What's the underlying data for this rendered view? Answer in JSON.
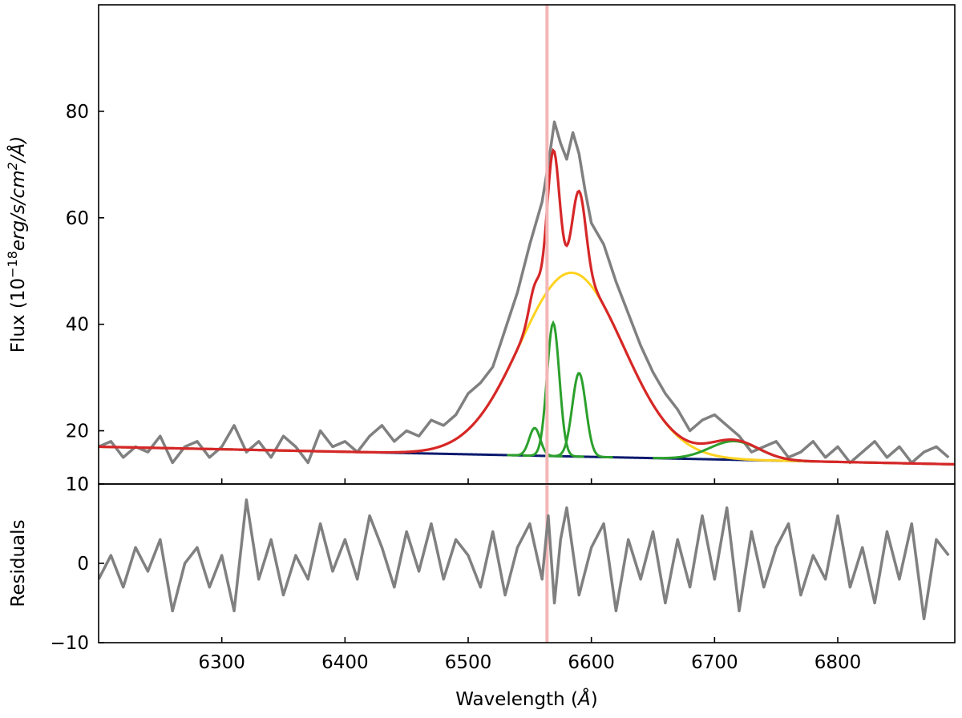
{
  "chart_data": [
    {
      "type": "line",
      "panel": "main",
      "ylabel_text": "Flux (",
      "ylabel_math": "10",
      "ylabel_exp": "−18",
      "ylabel_unit_a": "erg/s/cm",
      "ylabel_unit_sq": "2",
      "ylabel_unit_b": "/Å)",
      "xlim": [
        6200,
        6895
      ],
      "ylim": [
        10,
        100
      ],
      "yticks": [
        {
          "v": 10,
          "label": "10"
        },
        {
          "v": 20,
          "label": "20"
        },
        {
          "v": 40,
          "label": "40"
        },
        {
          "v": 60,
          "label": "60"
        },
        {
          "v": 80,
          "label": "80"
        }
      ],
      "vline": {
        "x": 6564,
        "color": "#f4b6b6"
      },
      "series": [
        {
          "role": "observed-spectrum",
          "color": "#808080",
          "x": [
            6200,
            6210,
            6220,
            6230,
            6240,
            6250,
            6260,
            6270,
            6280,
            6290,
            6300,
            6310,
            6320,
            6330,
            6340,
            6350,
            6360,
            6370,
            6380,
            6390,
            6400,
            6410,
            6420,
            6430,
            6440,
            6450,
            6460,
            6470,
            6480,
            6490,
            6500,
            6510,
            6520,
            6530,
            6540,
            6550,
            6560,
            6565,
            6570,
            6575,
            6580,
            6585,
            6590,
            6595,
            6600,
            6610,
            6620,
            6630,
            6640,
            6650,
            6660,
            6670,
            6680,
            6690,
            6700,
            6710,
            6720,
            6730,
            6740,
            6750,
            6760,
            6770,
            6780,
            6790,
            6800,
            6810,
            6820,
            6830,
            6840,
            6850,
            6860,
            6870,
            6880,
            6890
          ],
          "y": [
            17,
            18,
            15,
            17,
            16,
            19,
            14,
            17,
            18,
            15,
            17,
            21,
            16,
            18,
            15,
            19,
            17,
            14,
            20,
            17,
            18,
            16,
            19,
            21,
            18,
            20,
            19,
            22,
            21,
            23,
            27,
            29,
            32,
            39,
            46,
            55,
            63,
            70,
            78,
            74,
            71,
            76,
            72,
            65,
            59,
            55,
            48,
            42,
            36,
            31,
            27,
            24,
            20,
            22,
            23,
            21,
            19,
            16,
            17,
            18,
            15,
            16,
            18,
            15,
            17,
            14,
            16,
            18,
            15,
            17,
            14,
            16,
            17,
            15
          ]
        },
        {
          "role": "continuum",
          "color": "#0a1a6e",
          "x": [
            6200,
            6895
          ],
          "y": [
            17.0,
            13.7
          ]
        },
        {
          "role": "broad-component",
          "color": "#ffd21f",
          "x": [
            6200,
            6895
          ],
          "model": {
            "type": "gauss",
            "center": 6584,
            "sigma": 42,
            "amp": 34.5
          }
        },
        {
          "role": "narrow-components",
          "color": "#2ca02c",
          "x": [
            6520,
            6620
          ],
          "model": {
            "type": "multi-gauss",
            "components": [
              {
                "center": 6554,
                "sigma": 4.5,
                "amp": 5.2
              },
              {
                "center": 6569,
                "sigma": 5.0,
                "amp": 25.0
              },
              {
                "center": 6590,
                "sigma": 5.5,
                "amp": 15.7
              }
            ]
          }
        },
        {
          "role": "sii-component",
          "color": "#2ca02c",
          "x": [
            6650,
            6780
          ],
          "model": {
            "type": "gauss",
            "center": 6716,
            "sigma": 20,
            "amp": 3.5
          }
        },
        {
          "role": "total-fit",
          "color": "#d62728",
          "x": [
            6200,
            6895
          ],
          "model": {
            "type": "sum"
          }
        }
      ]
    },
    {
      "type": "line",
      "panel": "residuals",
      "ylabel": "Residuals",
      "xlabel_text": "Wavelength (",
      "xlabel_unit": "Å",
      "xlabel_close": ")",
      "xlim": [
        6200,
        6895
      ],
      "ylim": [
        -10,
        10
      ],
      "yticks": [
        {
          "v": -10,
          "label": "−10"
        },
        {
          "v": 0,
          "label": "0"
        },
        {
          "v": 10,
          "label": "10"
        }
      ],
      "xticks": [
        {
          "v": 6300,
          "label": "6300"
        },
        {
          "v": 6400,
          "label": "6400"
        },
        {
          "v": 6500,
          "label": "6500"
        },
        {
          "v": 6600,
          "label": "6600"
        },
        {
          "v": 6700,
          "label": "6700"
        },
        {
          "v": 6800,
          "label": "6800"
        }
      ],
      "series": [
        {
          "role": "residuals",
          "color": "#808080",
          "x": [
            6200,
            6210,
            6220,
            6230,
            6240,
            6250,
            6260,
            6270,
            6280,
            6290,
            6300,
            6310,
            6320,
            6330,
            6340,
            6350,
            6360,
            6370,
            6380,
            6390,
            6400,
            6410,
            6420,
            6430,
            6440,
            6450,
            6460,
            6470,
            6480,
            6490,
            6500,
            6510,
            6520,
            6530,
            6540,
            6550,
            6560,
            6565,
            6570,
            6575,
            6580,
            6590,
            6600,
            6610,
            6620,
            6630,
            6640,
            6650,
            6660,
            6670,
            6680,
            6690,
            6700,
            6710,
            6720,
            6730,
            6740,
            6750,
            6760,
            6770,
            6780,
            6790,
            6800,
            6810,
            6820,
            6830,
            6840,
            6850,
            6860,
            6870,
            6880,
            6890
          ],
          "y": [
            -2,
            1,
            -3,
            2,
            -1,
            3,
            -6,
            0,
            2,
            -3,
            1,
            -6,
            8,
            -2,
            3,
            -4,
            1,
            -2,
            5,
            -1,
            3,
            -2,
            6,
            2,
            -3,
            4,
            -1,
            5,
            -2,
            3,
            1,
            -3,
            4,
            -4,
            2,
            5,
            -2,
            6,
            -5,
            3,
            7,
            -4,
            2,
            5,
            -6,
            3,
            -2,
            4,
            -5,
            3,
            -3,
            6,
            -2,
            7,
            -6,
            4,
            -3,
            2,
            5,
            -4,
            1,
            -2,
            6,
            -3,
            2,
            -5,
            4,
            -2,
            5,
            -7,
            3,
            1
          ]
        }
      ]
    }
  ]
}
